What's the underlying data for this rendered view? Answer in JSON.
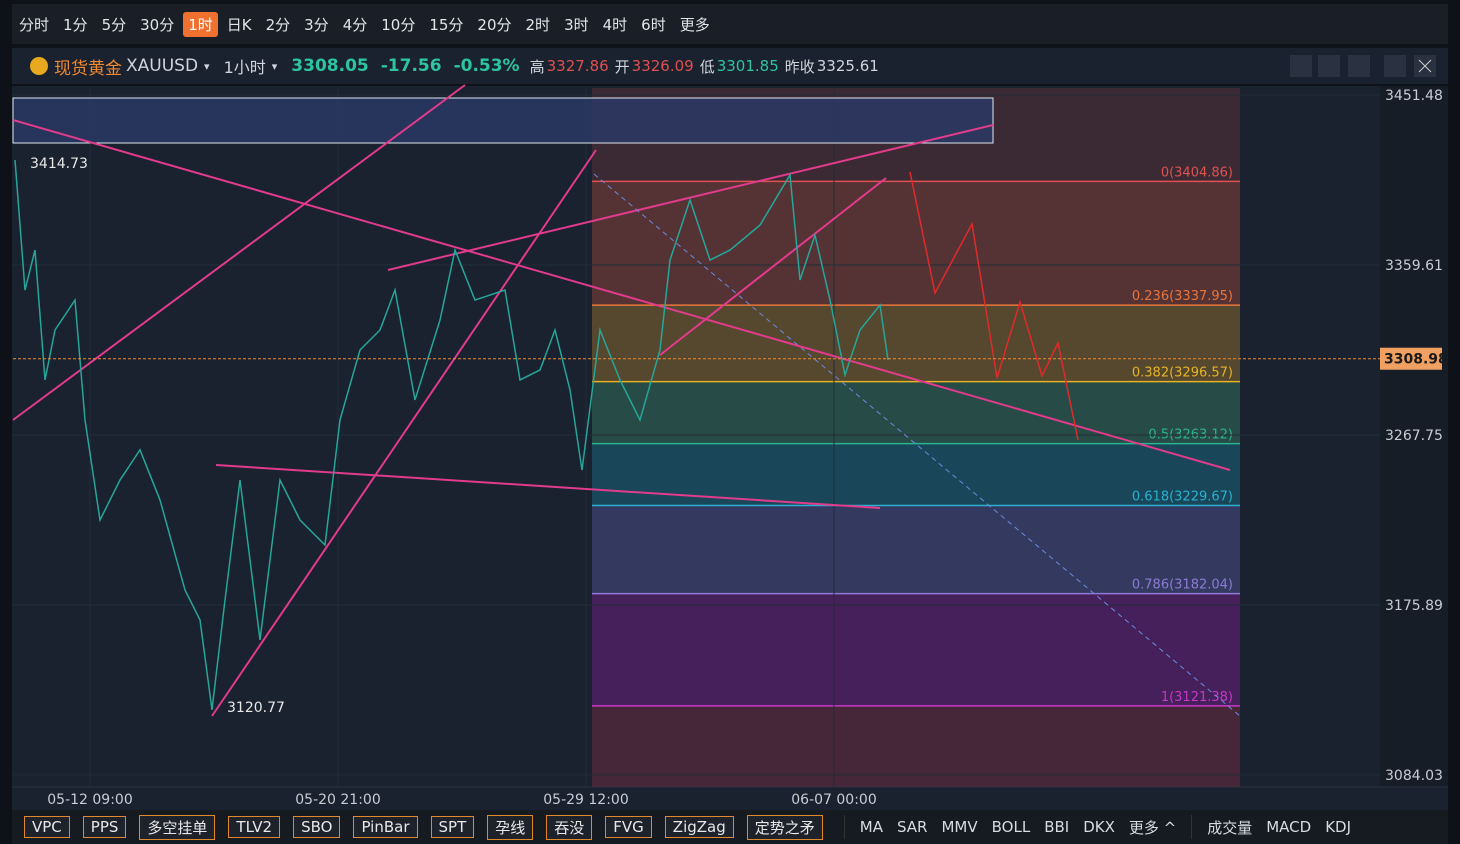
{
  "toolbar": {
    "periods": [
      "分时",
      "1分",
      "5分",
      "30分",
      "1时",
      "日K",
      "2分",
      "3分",
      "4分",
      "10分",
      "15分",
      "20分",
      "2时",
      "3时",
      "4时",
      "6时",
      "更多"
    ],
    "active": 4
  },
  "header": {
    "name": "现货黄金",
    "symbol": "XAUUSD",
    "interval": "1小时",
    "last": "3308.05",
    "change": "-17.56",
    "pct": "-0.53%",
    "high_label": "高",
    "high": "3327.86",
    "open_label": "开",
    "open": "3326.09",
    "low_label": "低",
    "low": "3301.85",
    "prev_label": "昨收",
    "prev": "3325.61"
  },
  "chart_data": {
    "type": "line",
    "color": "#26a69a",
    "x": [
      2,
      12,
      22,
      32,
      42,
      62,
      72,
      87,
      107,
      127,
      147,
      172,
      187,
      199,
      212,
      227,
      247,
      267,
      287,
      312,
      327,
      347,
      367,
      382,
      402,
      427,
      442,
      462,
      492,
      507,
      527,
      542,
      557,
      569,
      587,
      607,
      627,
      647,
      657,
      677,
      697,
      717,
      747,
      777,
      787,
      802,
      817,
      832,
      847,
      867,
      875
    ],
    "values": [
      3416.4,
      3346.1,
      3367.7,
      3297.5,
      3324.5,
      3340.7,
      3275.9,
      3221.8,
      3243.4,
      3259.7,
      3232.6,
      3184.0,
      3167.8,
      3119.2,
      3178.6,
      3243.4,
      3157.0,
      3243.4,
      3221.8,
      3208.3,
      3275.9,
      3313.7,
      3324.5,
      3346.1,
      3286.7,
      3329.9,
      3367.7,
      3340.7,
      3346.1,
      3297.5,
      3302.9,
      3324.5,
      3292.1,
      3248.8,
      3324.5,
      3297.5,
      3275.9,
      3313.7,
      3362.3,
      3394.8,
      3362.3,
      3367.7,
      3381.2,
      3408.3,
      3351.5,
      3375.8,
      3340.7,
      3300.2,
      3324.5,
      3338.0,
      3308.3
    ],
    "xlim": [
      0,
      1367
    ],
    "ylim": [
      3077.5,
      3455.3
    ],
    "xticks": [
      {
        "value": 77,
        "label": "05-12 09:00"
      },
      {
        "value": 325,
        "label": "05-20 21:00"
      },
      {
        "value": 573,
        "label": "05-29 12:00"
      },
      {
        "value": 821,
        "label": "06-07 00:00"
      }
    ],
    "yticks": [
      3451.48,
      3359.61,
      3267.75,
      3175.89,
      3084.03
    ],
    "last_price": 3308.98,
    "annotations": [
      {
        "x": 2,
        "value": 3414.73
      },
      {
        "x": 199,
        "value": 3120.77
      }
    ],
    "fib_levels": [
      {
        "value": 3404.86,
        "label": "0(3404.86)",
        "color": "#e05252"
      },
      {
        "value": 3337.95,
        "label": "0.236(3337.95)",
        "color": "#e8743a"
      },
      {
        "value": 3296.57,
        "label": "0.382(3296.57)",
        "color": "#e6b422"
      },
      {
        "value": 3263.12,
        "label": "0.5(3263.12)",
        "color": "#2bb38f"
      },
      {
        "value": 3229.67,
        "label": "0.618(3229.67)",
        "color": "#2ab0d0"
      },
      {
        "value": 3182.04,
        "label": "0.786(3182.04)",
        "color": "#8c7ad6"
      },
      {
        "value": 3121.38,
        "label": "1(3121.38)",
        "color": "#c638c6"
      }
    ]
  },
  "indicators": [
    "VPC",
    "PPS",
    "多空挂单",
    "TLV2",
    "SBO",
    "PinBar",
    "SPT",
    "孕线",
    "吞没",
    "FVG",
    "ZigZag",
    "定势之矛"
  ],
  "main_indicators": [
    "MA",
    "SAR",
    "MMV",
    "BOLL",
    "BBI",
    "DKX",
    "更多 ^"
  ],
  "sub_indicators": [
    "成交量",
    "MACD",
    "KDJ"
  ]
}
